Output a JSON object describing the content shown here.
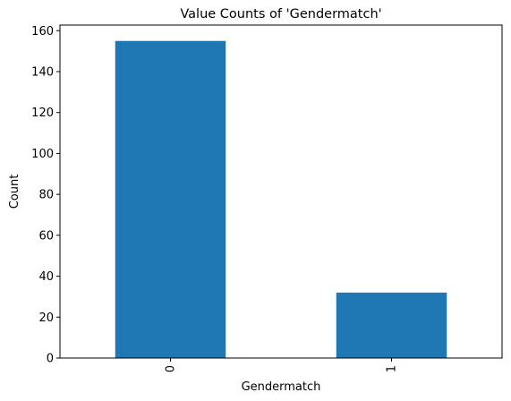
{
  "chart_data": {
    "type": "bar",
    "title": "Value Counts of 'Gendermatch'",
    "xlabel": "Gendermatch",
    "ylabel": "Count",
    "categories": [
      "0",
      "1"
    ],
    "values": [
      155,
      32
    ],
    "ylim": [
      0,
      162.75
    ],
    "yticks": [
      0,
      20,
      40,
      60,
      80,
      100,
      120,
      140,
      160
    ],
    "bar_color": "#1f77b4",
    "grid": false,
    "legend": "none",
    "x_tick_rotation": 90
  }
}
